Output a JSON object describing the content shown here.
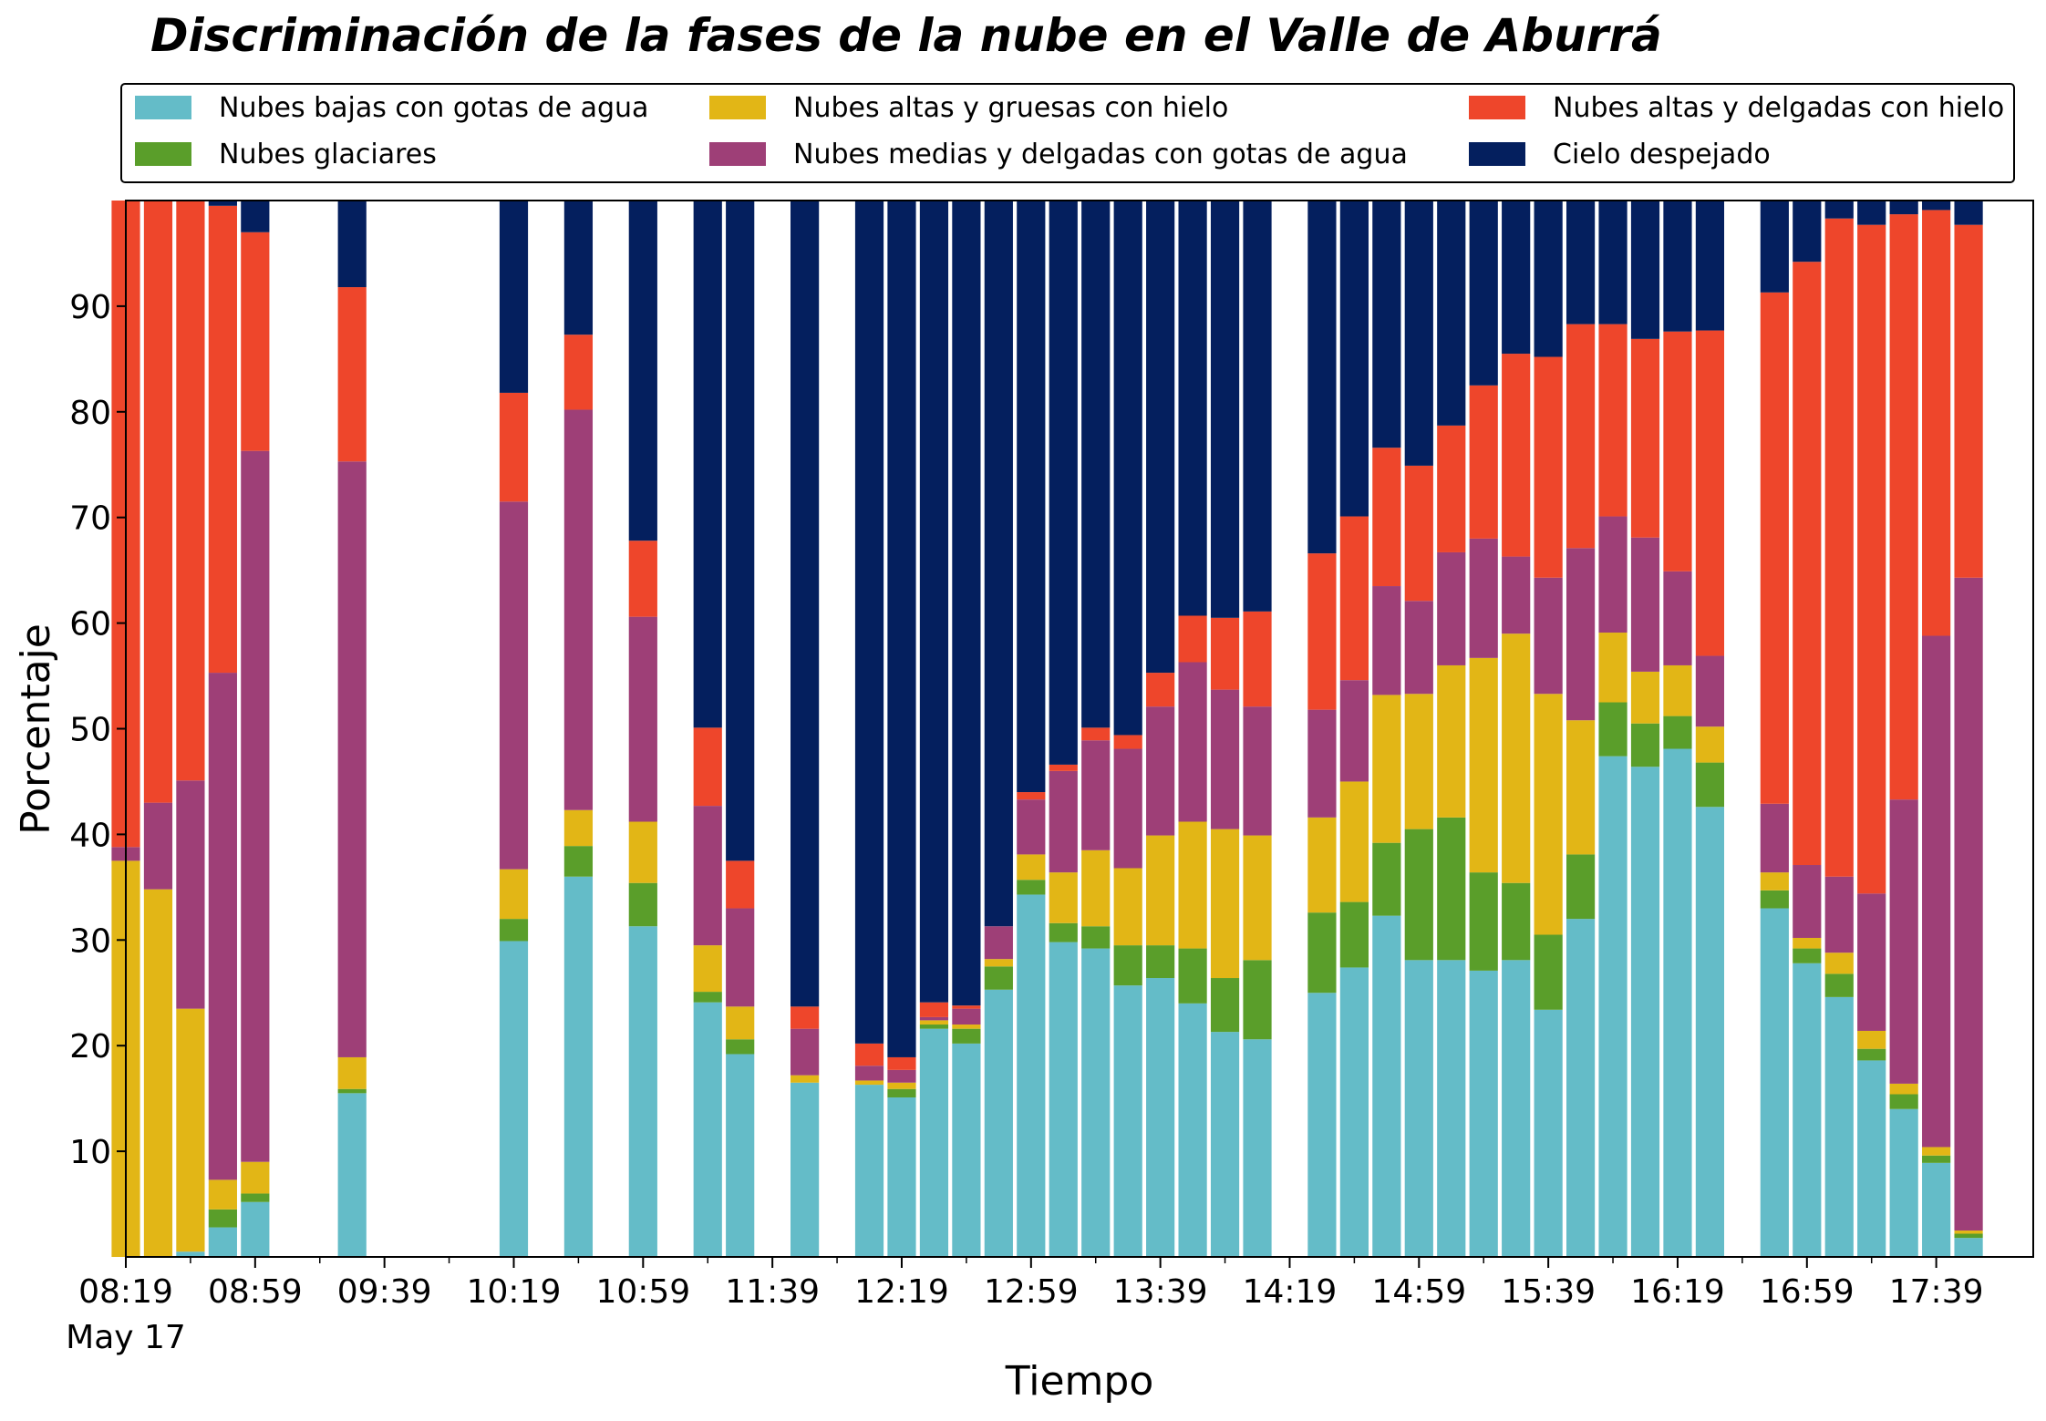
{
  "chart_data": {
    "type": "bar",
    "stacked": true,
    "title": "Discriminación de la fases de la nube en el Valle de Aburrá",
    "xlabel": "Tiempo",
    "ylabel": "Porcentaje",
    "ylim": [
      0,
      100
    ],
    "yticks": [
      10,
      20,
      30,
      40,
      50,
      60,
      70,
      80,
      90
    ],
    "xtick_labels": [
      "08:19",
      "08:59",
      "09:39",
      "10:19",
      "10:59",
      "11:39",
      "12:19",
      "12:59",
      "13:39",
      "14:19",
      "14:59",
      "15:39",
      "16:19",
      "16:59",
      "17:39"
    ],
    "xtick_sublabel": "May 17",
    "x_range_minutes": [
      0,
      590
    ],
    "bar_interval_minutes": 10,
    "legend_position": "top",
    "grid": false,
    "series": [
      {
        "name": "Nubes bajas con gotas de agua",
        "color": "#64bcc8"
      },
      {
        "name": "Nubes glaciares",
        "color": "#5a9e2a"
      },
      {
        "name": "Nubes altas y gruesas con hielo",
        "color": "#e2b616"
      },
      {
        "name": "Nubes medias y delgadas con gotas de agua",
        "color": "#9e3f77"
      },
      {
        "name": "Nubes altas y delgadas con hielo",
        "color": "#ee462b"
      },
      {
        "name": "Cielo despejado",
        "color": "#041f5e"
      }
    ],
    "bars": [
      {
        "time": "08:19",
        "values": [
          0,
          0,
          37.5,
          1.3,
          61.2,
          0
        ]
      },
      {
        "time": "08:29",
        "values": [
          0,
          0,
          34.8,
          8.2,
          57,
          0
        ]
      },
      {
        "time": "08:39",
        "values": [
          0.5,
          0,
          23,
          21.6,
          54.9,
          0
        ]
      },
      {
        "time": "08:49",
        "values": [
          2.8,
          1.7,
          2.8,
          48,
          44.2,
          0.5
        ]
      },
      {
        "time": "08:59",
        "values": [
          5.2,
          0.8,
          3,
          67.3,
          20.7,
          3
        ]
      },
      {
        "time": "09:29",
        "values": [
          15.5,
          0.4,
          3,
          56.4,
          16.5,
          8.2
        ]
      },
      {
        "time": "10:19",
        "values": [
          29.9,
          2.1,
          4.7,
          34.8,
          10.3,
          18.2
        ]
      },
      {
        "time": "10:39",
        "values": [
          36,
          2.9,
          3.4,
          37.9,
          7.1,
          12.7
        ]
      },
      {
        "time": "10:59",
        "values": [
          31.3,
          4.1,
          5.8,
          19.4,
          7.2,
          32.2
        ]
      },
      {
        "time": "11:19",
        "values": [
          24.1,
          1,
          4.4,
          13.2,
          7.4,
          49.9
        ]
      },
      {
        "time": "11:29",
        "values": [
          19.2,
          1.4,
          3.1,
          9.3,
          4.5,
          62.5
        ]
      },
      {
        "time": "11:49",
        "values": [
          16.5,
          0,
          0.7,
          4.4,
          2.1,
          76.3
        ]
      },
      {
        "time": "12:09",
        "values": [
          16.3,
          0,
          0.4,
          1.4,
          2.1,
          79.8
        ]
      },
      {
        "time": "12:19",
        "values": [
          15.1,
          0.8,
          0.6,
          1.2,
          1.2,
          81.1
        ]
      },
      {
        "time": "12:29",
        "values": [
          21.6,
          0.4,
          0.4,
          0.3,
          1.4,
          75.9
        ]
      },
      {
        "time": "12:39",
        "values": [
          20.2,
          1.4,
          0.4,
          1.5,
          0.3,
          76.2
        ]
      },
      {
        "time": "12:49",
        "values": [
          25.3,
          2.2,
          0.7,
          3.1,
          0,
          68.7
        ]
      },
      {
        "time": "12:59",
        "values": [
          34.3,
          1.4,
          2.4,
          5.2,
          0.7,
          56
        ]
      },
      {
        "time": "13:09",
        "values": [
          29.8,
          1.8,
          4.8,
          9.6,
          0.6,
          53.4
        ]
      },
      {
        "time": "13:19",
        "values": [
          29.2,
          2.1,
          7.2,
          10.4,
          1.2,
          49.9
        ]
      },
      {
        "time": "13:29",
        "values": [
          25.7,
          3.8,
          7.3,
          11.3,
          1.3,
          50.6
        ]
      },
      {
        "time": "13:39",
        "values": [
          26.4,
          3.1,
          10.4,
          12.2,
          3.2,
          44.7
        ]
      },
      {
        "time": "13:49",
        "values": [
          24,
          5.2,
          12,
          15.1,
          4.4,
          39.3
        ]
      },
      {
        "time": "13:59",
        "values": [
          21.3,
          5.1,
          14.1,
          13.2,
          6.8,
          39.5
        ]
      },
      {
        "time": "14:09",
        "values": [
          20.6,
          7.5,
          11.8,
          12.2,
          9,
          38.9
        ]
      },
      {
        "time": "14:29",
        "values": [
          25,
          7.6,
          9,
          10.2,
          14.8,
          33.4
        ]
      },
      {
        "time": "14:39",
        "values": [
          27.4,
          6.2,
          11.4,
          9.6,
          15.5,
          29.9
        ]
      },
      {
        "time": "14:49",
        "values": [
          32.3,
          6.9,
          14,
          10.3,
          13.1,
          23.4
        ]
      },
      {
        "time": "14:59",
        "values": [
          28.1,
          12.4,
          12.8,
          8.8,
          12.8,
          25.1
        ]
      },
      {
        "time": "15:09",
        "values": [
          28.1,
          13.5,
          14.4,
          10.7,
          12,
          21.3
        ]
      },
      {
        "time": "15:19",
        "values": [
          27.1,
          9.3,
          20.3,
          11.3,
          14.5,
          17.5
        ]
      },
      {
        "time": "15:29",
        "values": [
          28.1,
          7.3,
          23.6,
          7.3,
          19.2,
          14.5
        ]
      },
      {
        "time": "15:39",
        "values": [
          23.4,
          7.1,
          22.8,
          11,
          20.9,
          14.8
        ]
      },
      {
        "time": "15:49",
        "values": [
          32,
          6.1,
          12.7,
          16.3,
          21.2,
          11.7
        ]
      },
      {
        "time": "15:59",
        "values": [
          47.4,
          5.1,
          6.6,
          11,
          18.2,
          11.7
        ]
      },
      {
        "time": "16:09",
        "values": [
          46.4,
          4.1,
          4.9,
          12.7,
          18.8,
          13.1
        ]
      },
      {
        "time": "16:19",
        "values": [
          48.1,
          3.1,
          4.8,
          8.9,
          22.7,
          12.4
        ]
      },
      {
        "time": "16:29",
        "values": [
          42.6,
          4.2,
          3.4,
          6.7,
          30.8,
          12.3
        ]
      },
      {
        "time": "16:49",
        "values": [
          33,
          1.7,
          1.7,
          6.5,
          48.4,
          8.7
        ]
      },
      {
        "time": "16:59",
        "values": [
          27.8,
          1.4,
          1,
          6.9,
          57.1,
          5.8
        ]
      },
      {
        "time": "17:09",
        "values": [
          24.6,
          2.2,
          2,
          7.2,
          62.3,
          1.7
        ]
      },
      {
        "time": "17:19",
        "values": [
          18.6,
          1.1,
          1.7,
          13,
          63.3,
          2.3
        ]
      },
      {
        "time": "17:29",
        "values": [
          14,
          1.4,
          1,
          26.9,
          55.4,
          1.3
        ]
      },
      {
        "time": "17:39",
        "values": [
          8.9,
          0.7,
          0.8,
          48.4,
          40.3,
          0.9
        ]
      },
      {
        "time": "17:49",
        "values": [
          1.8,
          0.4,
          0.3,
          61.8,
          33.4,
          2.3
        ]
      }
    ]
  }
}
